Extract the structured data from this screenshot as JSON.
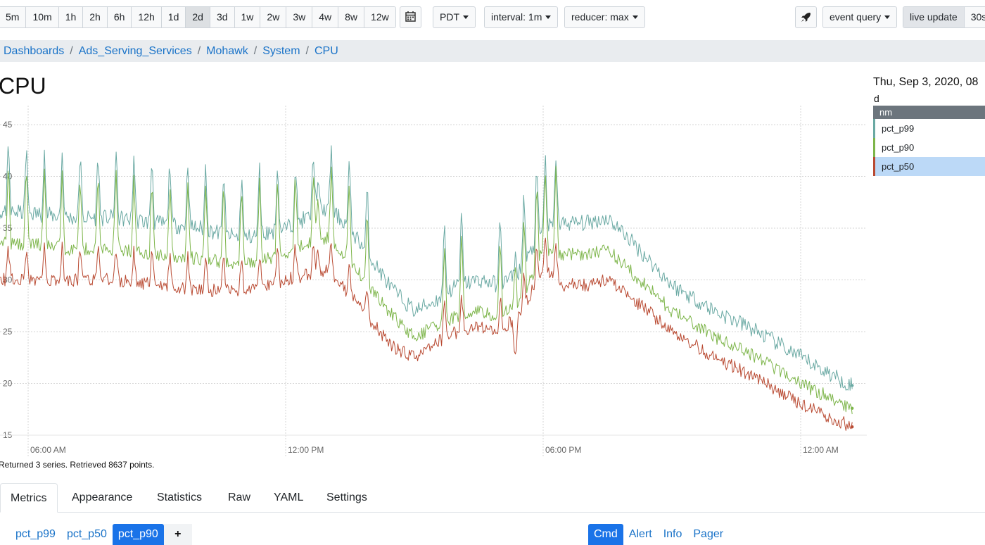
{
  "toolbar": {
    "ranges": [
      "5m",
      "10m",
      "1h",
      "2h",
      "6h",
      "12h",
      "1d",
      "2d",
      "3d",
      "1w",
      "2w",
      "3w",
      "4w",
      "8w",
      "12w"
    ],
    "active_range": "2d",
    "calendar_icon": "calendar-icon",
    "timezone": "PDT",
    "interval": "interval: 1m",
    "reducer": "reducer: max",
    "rocket_icon": "rocket-icon",
    "event_query": "event query",
    "live_update": "live update",
    "refresh": "30s"
  },
  "breadcrumb": [
    "Dashboards",
    "Ads_Serving_Services",
    "Mohawk",
    "System",
    "CPU"
  ],
  "page_title": "CPU",
  "legend": {
    "date": "Thu, Sep 3, 2020, 08",
    "d_label": "d",
    "header": "nm",
    "items": [
      {
        "name": "pct_p99",
        "color": "#6aa9a3"
      },
      {
        "name": "pct_p90",
        "color": "#7db54a"
      },
      {
        "name": "pct_p50",
        "color": "#b94a32",
        "selected": true
      }
    ]
  },
  "status": "Returned 3 series. Retrieved 8637 points.",
  "tabs": [
    "Metrics",
    "Appearance",
    "Statistics",
    "Raw",
    "YAML",
    "Settings"
  ],
  "active_tab": "Metrics",
  "metric_pills": [
    "pct_p99",
    "pct_p50",
    "pct_p90"
  ],
  "active_metric": "pct_p90",
  "add_label": "+",
  "right_pills": [
    "Cmd",
    "Alert",
    "Info",
    "Pager"
  ],
  "active_right": "Cmd",
  "chart_data": {
    "type": "line",
    "y_ticks": [
      15,
      20,
      25,
      30,
      35,
      40,
      45
    ],
    "ylim": [
      14.2,
      47
    ],
    "x_ticks": [
      {
        "t": 6,
        "label": "06:00 AM"
      },
      {
        "t": 12,
        "label": "12:00 PM"
      },
      {
        "t": 18,
        "label": "06:00 PM"
      },
      {
        "t": 24,
        "label": "12:00 AM"
      }
    ],
    "xlim": [
      3.4,
      25.5
    ],
    "grid": true,
    "series": [
      {
        "name": "pct_p99",
        "color": "#6aa9a3",
        "x": [
          3.4,
          4.0,
          5.0,
          6.0,
          7.0,
          8.0,
          9.0,
          10.0,
          11.0,
          12.0,
          12.5,
          13.0,
          13.5,
          14.0,
          14.5,
          15.0,
          15.5,
          16.0,
          16.5,
          17.0,
          17.5,
          18.0,
          18.5,
          19.0,
          19.5,
          20.0,
          21.0,
          22.0,
          23.0,
          24.0,
          25.0,
          25.2
        ],
        "y": [
          33.5,
          35.5,
          36.5,
          36.5,
          36.0,
          36.0,
          35.5,
          35.0,
          34.0,
          35.0,
          36.0,
          37.0,
          35.0,
          32.0,
          29.0,
          27.0,
          28.0,
          29.5,
          30.0,
          29.5,
          31.0,
          35.0,
          35.5,
          35.5,
          36.0,
          34.0,
          29.5,
          27.0,
          25.0,
          22.5,
          20.2,
          19.8
        ]
      },
      {
        "name": "pct_p90",
        "color": "#7db54a",
        "x": [
          3.4,
          4.0,
          5.0,
          6.0,
          7.0,
          8.0,
          9.0,
          10.0,
          11.0,
          12.0,
          12.5,
          13.0,
          13.5,
          14.0,
          14.5,
          15.0,
          15.5,
          16.0,
          16.5,
          17.0,
          17.5,
          18.0,
          18.5,
          19.0,
          19.5,
          20.0,
          21.0,
          22.0,
          23.0,
          24.0,
          25.0,
          25.2
        ],
        "y": [
          30.5,
          32.5,
          33.5,
          33.5,
          33.0,
          33.0,
          32.5,
          32.0,
          31.5,
          32.5,
          33.5,
          34.0,
          32.0,
          29.0,
          26.5,
          24.5,
          25.5,
          26.5,
          27.0,
          26.5,
          28.0,
          33.0,
          32.5,
          32.5,
          33.0,
          31.0,
          27.0,
          24.5,
          22.5,
          20.0,
          18.0,
          17.6
        ]
      },
      {
        "name": "pct_p50",
        "color": "#b94a32",
        "x": [
          3.4,
          4.0,
          5.0,
          6.0,
          7.0,
          8.0,
          9.0,
          10.0,
          11.0,
          12.0,
          12.5,
          13.0,
          13.5,
          14.0,
          14.5,
          15.0,
          15.5,
          16.0,
          16.5,
          17.0,
          17.5,
          18.0,
          18.5,
          19.0,
          19.5,
          20.0,
          21.0,
          22.0,
          23.0,
          24.0,
          25.0,
          25.2
        ],
        "y": [
          27.5,
          29.5,
          30.0,
          30.0,
          30.0,
          30.0,
          29.5,
          29.0,
          29.0,
          30.0,
          30.5,
          31.0,
          28.5,
          26.0,
          23.5,
          22.5,
          24.0,
          25.0,
          25.5,
          25.0,
          27.0,
          31.0,
          29.5,
          29.5,
          30.0,
          28.5,
          25.0,
          22.5,
          20.5,
          18.0,
          16.2,
          15.8
        ]
      }
    ]
  }
}
